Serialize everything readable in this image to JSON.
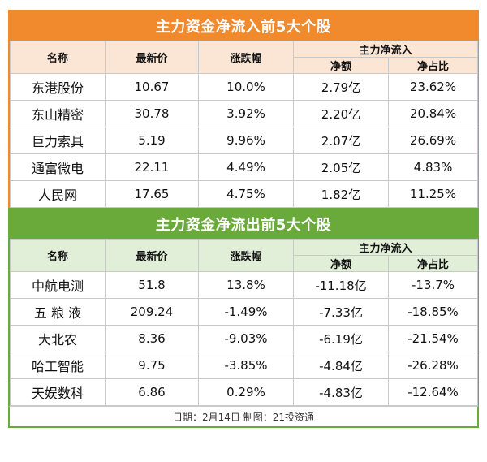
{
  "inflow": {
    "title": "主力资金净流入前5大个股",
    "headers": {
      "name": "名称",
      "price": "最新价",
      "change": "涨跌幅",
      "group": "主力净流入",
      "net": "净额",
      "ratio": "净占比"
    },
    "rows": [
      {
        "name": "东港股份",
        "price": "10.67",
        "change": "10.0%",
        "net": "2.79亿",
        "ratio": "23.62%"
      },
      {
        "name": "东山精密",
        "price": "30.78",
        "change": "3.92%",
        "net": "2.20亿",
        "ratio": "20.84%"
      },
      {
        "name": "巨力索具",
        "price": "5.19",
        "change": "9.96%",
        "net": "2.07亿",
        "ratio": "26.69%"
      },
      {
        "name": "通富微电",
        "price": "22.11",
        "change": "4.49%",
        "net": "2.05亿",
        "ratio": "4.83%"
      },
      {
        "name": "人民网",
        "price": "17.65",
        "change": "4.75%",
        "net": "1.82亿",
        "ratio": "11.25%"
      }
    ]
  },
  "outflow": {
    "title": "主力资金净流出前5大个股",
    "headers": {
      "name": "名称",
      "price": "最新价",
      "change": "涨跌幅",
      "group": "主力净流入",
      "net": "净额",
      "ratio": "净占比"
    },
    "rows": [
      {
        "name": "中航电测",
        "price": "51.8",
        "change": "13.8%",
        "net": "-11.18亿",
        "ratio": "-13.7%"
      },
      {
        "name": "五 粮 液",
        "price": "209.24",
        "change": "-1.49%",
        "net": "-7.33亿",
        "ratio": "-18.85%"
      },
      {
        "name": "大北农",
        "price": "8.36",
        "change": "-9.03%",
        "net": "-6.19亿",
        "ratio": "-21.54%"
      },
      {
        "name": "哈工智能",
        "price": "9.75",
        "change": "-3.85%",
        "net": "-4.84亿",
        "ratio": "-26.28%"
      },
      {
        "name": "天娱数科",
        "price": "6.86",
        "change": "0.29%",
        "net": "-4.83亿",
        "ratio": "-12.64%"
      }
    ]
  },
  "footer": "日期：2月14日 制图：21投资通",
  "colors": {
    "inflow_accent": "#f08a2c",
    "outflow_accent": "#6aaa3a",
    "inflow_header_bg": "#fbe6d6",
    "outflow_header_bg": "#e1efd8"
  }
}
